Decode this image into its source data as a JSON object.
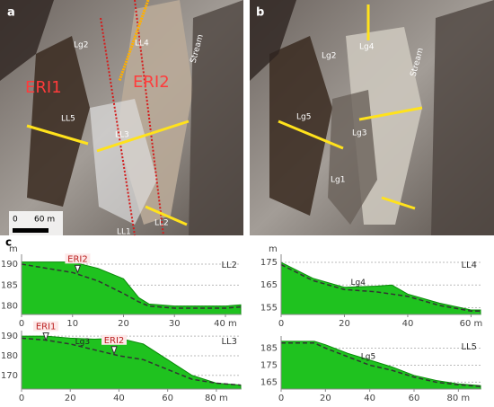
{
  "figure": {
    "panel_a": {
      "label": "a",
      "lg2": "Lg2",
      "ll4": "LL4",
      "stream": "Stream",
      "eri1": "ERI1",
      "eri2": "ERI2",
      "ll5": "LL5",
      "ll3": "LL3",
      "ll2": "LL2",
      "ll1": "LL1",
      "scale_zero": "0",
      "scale_len": "60 m"
    },
    "panel_b": {
      "label": "b",
      "lg4": "Lg4",
      "lg2": "Lg2",
      "stream": "Stream",
      "lg5": "Lg5",
      "lg3": "Lg3",
      "lg1": "Lg1"
    },
    "panel_c": {
      "label": "c"
    }
  },
  "chart_data": [
    {
      "type": "area",
      "title": "LL2",
      "y_unit": "m",
      "x": [
        0,
        10,
        15,
        20,
        23,
        25,
        30,
        40,
        43
      ],
      "series": [
        {
          "color": "#1fc21f",
          "values": [
            190.5,
            190.5,
            189,
            186.5,
            182,
            180.5,
            180,
            180,
            180.3
          ]
        },
        {
          "color": "#333333",
          "style": "dashed",
          "values": [
            190,
            188,
            186,
            183,
            181,
            180,
            179.5,
            179.5,
            179.8
          ]
        }
      ],
      "xlim": [
        0,
        43
      ],
      "ylim": [
        178,
        191.5
      ],
      "xticks": [
        0,
        10,
        20,
        30,
        {
          "value": 40,
          "label": "40 m"
        }
      ],
      "yticks": [
        180,
        185,
        190
      ],
      "annotations": [
        {
          "text": "ERI2",
          "x": 11,
          "y": 188
        }
      ]
    },
    {
      "type": "area",
      "title": "LL4",
      "y_unit": "m",
      "x": [
        0,
        10,
        20,
        30,
        35,
        40,
        50,
        60,
        63
      ],
      "series": [
        {
          "color": "#1fc21f",
          "values": [
            175,
            168,
            164,
            164.5,
            165,
            161,
            157,
            154,
            154
          ]
        },
        {
          "color": "#333333",
          "style": "dashed",
          "values": [
            174,
            167,
            163,
            162,
            161,
            160,
            156,
            153.5,
            153.5
          ]
        }
      ],
      "xlim": [
        0,
        63
      ],
      "ylim": [
        152,
        177
      ],
      "xticks": [
        0,
        20,
        40,
        {
          "value": 60,
          "label": "60 m"
        }
      ],
      "yticks": [
        155,
        165,
        175
      ],
      "annotations": [
        {
          "text": "Lg4",
          "x": 22,
          "y": 166
        }
      ]
    },
    {
      "type": "area",
      "title": "LL3",
      "x": [
        0,
        10,
        20,
        30,
        40,
        50,
        60,
        70,
        80,
        90
      ],
      "series": [
        {
          "color": "#1fc21f",
          "values": [
            190,
            190,
            189,
            188.5,
            189,
            186,
            178,
            170,
            166,
            165
          ]
        },
        {
          "color": "#333333",
          "style": "dashed",
          "values": [
            189,
            188,
            186,
            183,
            180,
            178,
            173,
            168,
            166,
            165
          ]
        }
      ],
      "xlim": [
        0,
        90
      ],
      "ylim": [
        163,
        191
      ],
      "xticks": [
        0,
        20,
        40,
        60,
        {
          "value": 80,
          "label": "80 m"
        }
      ],
      "yticks": [
        170,
        180,
        190
      ],
      "annotations": [
        {
          "text": "ERI1",
          "x": 10,
          "y": 188
        },
        {
          "text": "ERI2",
          "x": 38,
          "y": 181
        },
        {
          "text": "Lg3",
          "x": 22,
          "y": 187
        }
      ]
    },
    {
      "type": "area",
      "title": "LL5",
      "x": [
        0,
        15,
        20,
        30,
        40,
        50,
        60,
        70,
        80,
        90
      ],
      "series": [
        {
          "color": "#1fc21f",
          "values": [
            189,
            189,
            187,
            182,
            178,
            174,
            169,
            166,
            164,
            163
          ]
        },
        {
          "color": "#333333",
          "style": "dashed",
          "values": [
            188,
            188,
            185,
            180,
            175,
            172,
            168,
            165,
            163.5,
            162.5
          ]
        }
      ],
      "xlim": [
        0,
        90
      ],
      "ylim": [
        161,
        190
      ],
      "xticks": [
        0,
        20,
        40,
        60,
        {
          "value": 80,
          "label": "80 m"
        }
      ],
      "yticks": [
        165,
        175,
        185
      ],
      "annotations": [
        {
          "text": "Lg5",
          "x": 36,
          "y": 180
        }
      ]
    }
  ]
}
